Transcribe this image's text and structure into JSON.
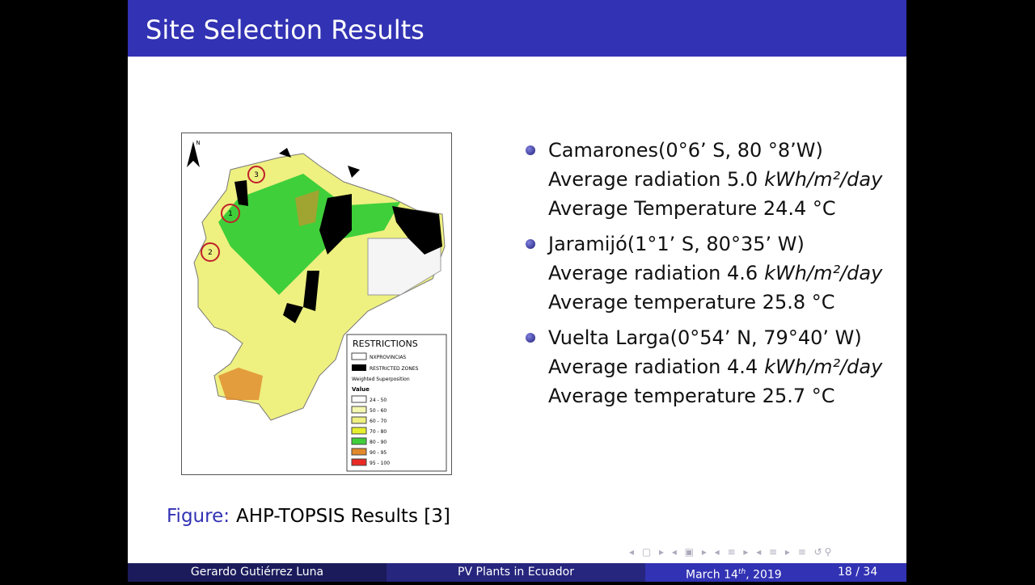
{
  "header": {
    "title": "Site Selection Results"
  },
  "figure": {
    "north": "N",
    "markers": [
      "3",
      "1",
      "2"
    ],
    "legend": {
      "title": "RESTRICTIONS",
      "provinces": "NXPROVINCIAS",
      "restricted": "RESTRICTED ZONES",
      "subtitle": "Weighted Superposition",
      "value_label": "Value",
      "classes": [
        {
          "label": "24 - 50",
          "color": "#ffffff"
        },
        {
          "label": "50 - 60",
          "color": "#f4f7b0"
        },
        {
          "label": "60 - 70",
          "color": "#eef080"
        },
        {
          "label": "70 - 80",
          "color": "#e6ef2e"
        },
        {
          "label": "80 - 90",
          "color": "#3fcf3a"
        },
        {
          "label": "90 - 95",
          "color": "#e0882a"
        },
        {
          "label": "95 - 100",
          "color": "#e82a25"
        }
      ]
    },
    "caption_prefix": "Figure:",
    "caption": "AHP-TOPSIS Results [3]"
  },
  "items": [
    {
      "heading": "Camarones(0°6’ S, 80 °8’W)",
      "radiation": "Average radiation 5.0",
      "unit": "kWh/m²/day",
      "temperature": "Average Temperature 24.4 °C"
    },
    {
      "heading": "Jaramijó(1°1’ S, 80°35’ W)",
      "radiation": "Average radiation 4.6",
      "unit": "kWh/m²/day",
      "temperature": "Average temperature 25.8 °C"
    },
    {
      "heading": "Vuelta Larga(0°54’ N, 79°40’ W)",
      "radiation": "Average radiation 4.4",
      "unit": "kWh/m²/day",
      "temperature": "Average temperature 25.7 °C"
    }
  ],
  "footer": {
    "author": "Gerardo Gutiérrez Luna",
    "title": "PV Plants in Ecuador",
    "date_start": "March 14",
    "date_sup": "th",
    "date_end": ", 2019",
    "page": "18 / 34"
  }
}
